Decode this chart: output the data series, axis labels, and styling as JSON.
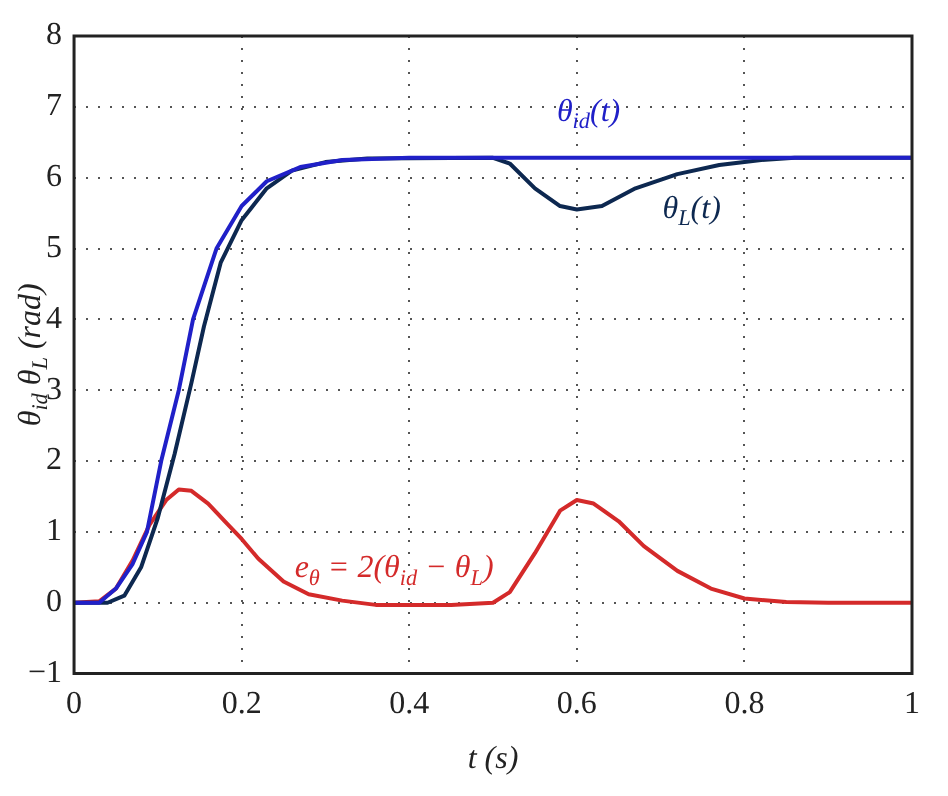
{
  "chart_data": {
    "type": "line",
    "xlabel": "t (s)",
    "ylabel": "θ$_{id}$ θ$_{L}$ (rad)",
    "xlim": [
      0,
      1
    ],
    "xticks": [
      0,
      0.2,
      0.4,
      0.6,
      0.8,
      1
    ],
    "ylim": [
      -1,
      8
    ],
    "yticks": [
      -1,
      0,
      1,
      2,
      3,
      4,
      5,
      6,
      7,
      8
    ],
    "grid": true,
    "legend": false,
    "marker": "none",
    "line_style": "solid",
    "series": [
      {
        "name": "θ$_{id}$(t)",
        "color": "#2020c8",
        "x": [
          0,
          0.03,
          0.05,
          0.07,
          0.087,
          0.104,
          0.125,
          0.142,
          0.17,
          0.2,
          0.23,
          0.27,
          0.32,
          0.4,
          1
        ],
        "values": [
          0,
          0,
          0.2,
          0.55,
          1,
          2,
          3,
          4,
          5,
          5.6,
          5.95,
          6.15,
          6.25,
          6.28,
          6.28
        ]
      },
      {
        "name": "θ$_{L}$(t)",
        "color": "#0d2850",
        "x": [
          0,
          0.04,
          0.06,
          0.08,
          0.1,
          0.12,
          0.14,
          0.155,
          0.175,
          0.2,
          0.23,
          0.26,
          0.3,
          0.35,
          0.5,
          0.52,
          0.55,
          0.58,
          0.6,
          0.63,
          0.67,
          0.72,
          0.77,
          0.82,
          0.86,
          1
        ],
        "values": [
          0,
          0,
          0.1,
          0.5,
          1.2,
          2.1,
          3.1,
          3.9,
          4.8,
          5.4,
          5.85,
          6.1,
          6.22,
          6.27,
          6.28,
          6.2,
          5.85,
          5.6,
          5.55,
          5.6,
          5.85,
          6.05,
          6.18,
          6.25,
          6.28,
          6.28
        ]
      },
      {
        "name": "e$_{θ}$ = 2(θ$_{id}$ − θ$_{L}$)",
        "color": "#d42a2a",
        "x": [
          0,
          0.03,
          0.05,
          0.07,
          0.09,
          0.11,
          0.125,
          0.14,
          0.16,
          0.18,
          0.2,
          0.22,
          0.25,
          0.28,
          0.32,
          0.36,
          0.45,
          0.5,
          0.52,
          0.55,
          0.58,
          0.6,
          0.62,
          0.65,
          0.68,
          0.72,
          0.76,
          0.8,
          0.85,
          0.9,
          1
        ],
        "values": [
          0,
          0.02,
          0.2,
          0.6,
          1.1,
          1.45,
          1.6,
          1.58,
          1.4,
          1.15,
          0.9,
          0.62,
          0.3,
          0.12,
          0.03,
          -0.03,
          -0.03,
          0,
          0.15,
          0.7,
          1.3,
          1.45,
          1.4,
          1.15,
          0.8,
          0.45,
          0.2,
          0.06,
          0.01,
          0,
          0
        ]
      }
    ]
  }
}
